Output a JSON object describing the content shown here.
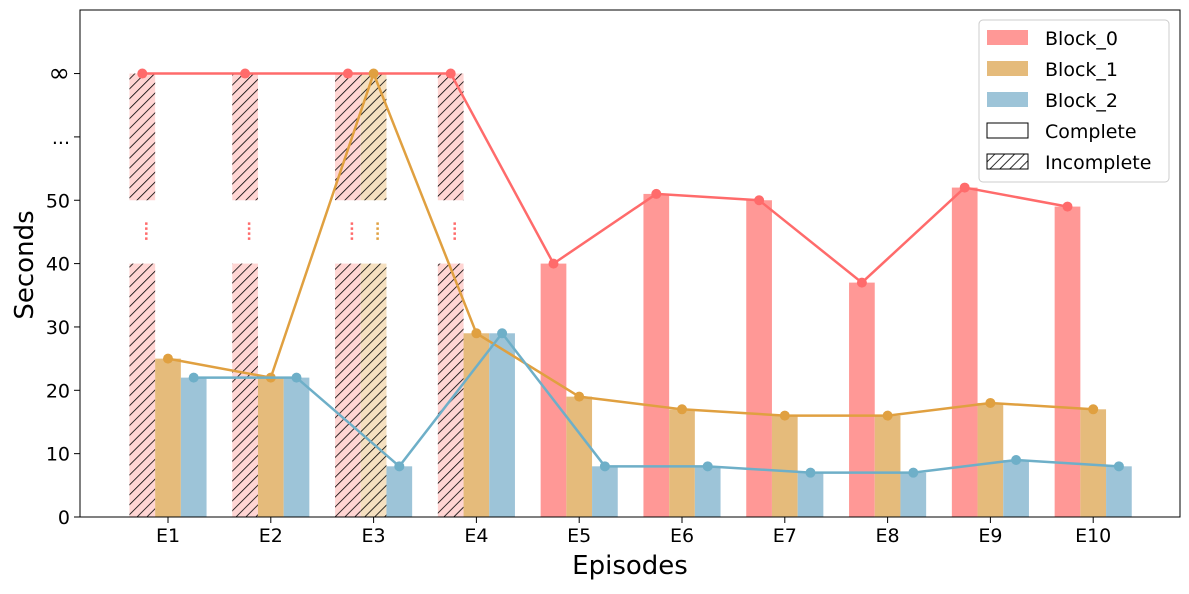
{
  "chart_data": {
    "type": "bar",
    "title": "",
    "xlabel": "Episodes",
    "ylabel": "Seconds",
    "categories": [
      "E1",
      "E2",
      "E3",
      "E4",
      "E5",
      "E6",
      "E7",
      "E8",
      "E9",
      "E10"
    ],
    "y_ticks": [
      "0",
      "10",
      "20",
      "30",
      "40",
      "50",
      "...",
      "∞"
    ],
    "y_tick_values": [
      0,
      10,
      20,
      30,
      40,
      50
    ],
    "ylim": [
      0,
      50
    ],
    "y_axis_break": "values above 50 shown as '...' and '∞'",
    "grid": false,
    "legend_position": "top-right",
    "series": [
      {
        "name": "Block_0",
        "color_bar": "#ff9896",
        "color_line": "#ff6b6b",
        "values": [
          "∞",
          "∞",
          "∞",
          "∞",
          40,
          51,
          50,
          37,
          52,
          49
        ],
        "status": [
          "Incomplete",
          "Incomplete",
          "Incomplete",
          "Incomplete",
          "Complete",
          "Complete",
          "Complete",
          "Complete",
          "Complete",
          "Complete"
        ]
      },
      {
        "name": "Block_1",
        "color_bar": "#e5bb7b",
        "color_line": "#e0a040",
        "values": [
          25,
          22,
          "∞",
          29,
          19,
          17,
          16,
          16,
          18,
          17
        ],
        "status": [
          "Complete",
          "Complete",
          "Incomplete",
          "Complete",
          "Complete",
          "Complete",
          "Complete",
          "Complete",
          "Complete",
          "Complete"
        ]
      },
      {
        "name": "Block_2",
        "color_bar": "#9dc4d8",
        "color_line": "#6eafc8",
        "values": [
          22,
          22,
          8,
          29,
          8,
          8,
          7,
          7,
          9,
          8
        ],
        "status": [
          "Complete",
          "Complete",
          "Complete",
          "Complete",
          "Complete",
          "Complete",
          "Complete",
          "Complete",
          "Complete",
          "Complete"
        ]
      }
    ],
    "legend": [
      "Block_0",
      "Block_1",
      "Block_2",
      "Complete",
      "Incomplete"
    ]
  }
}
